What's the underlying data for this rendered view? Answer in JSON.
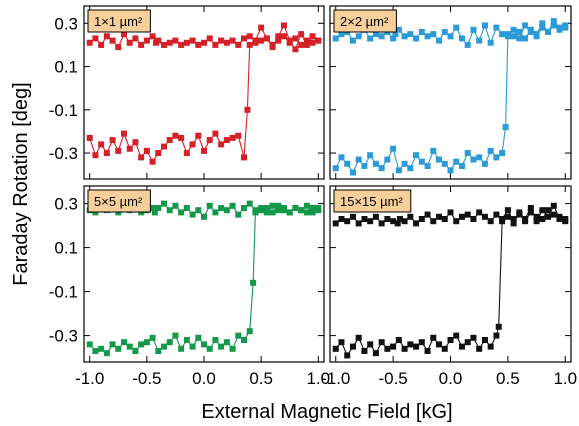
{
  "figure": {
    "xlabel": "External Magnetic Field [kG]",
    "ylabel": "Faraday Rotation [deg]",
    "y_tick_labels": [
      "0.3",
      "0.1",
      "-0.1",
      "-0.3"
    ],
    "x_tick_labels": [
      "-1.0",
      "-0.5",
      "0.0",
      "0.5",
      "1.0"
    ],
    "inset_background": "#f6cf9b"
  },
  "chart_data": [
    {
      "type": "line",
      "panel": "top-left",
      "annotation": "1×1 µm²",
      "color": "#d42027",
      "xlabel": "External Magnetic Field [kG]",
      "ylabel": "Faraday Rotation [deg]",
      "xlim": [
        -1.05,
        1.05
      ],
      "ylim": [
        -0.42,
        0.38
      ],
      "coercive_field": [
        -0.42,
        0.38
      ],
      "series": [
        {
          "x": [
            -1.0,
            -0.95,
            -0.9,
            -0.85,
            -0.8,
            -0.75,
            -0.7,
            -0.65,
            -0.6,
            -0.55,
            -0.5,
            -0.45,
            -0.42,
            -0.4,
            -0.35,
            -0.3,
            -0.25,
            -0.2,
            -0.15,
            -0.1,
            -0.05,
            0.0,
            0.05,
            0.1,
            0.15,
            0.2,
            0.25,
            0.3,
            0.35,
            0.4,
            0.45,
            0.5,
            0.55,
            0.6,
            0.65,
            0.7,
            0.75,
            0.8,
            0.85,
            0.9,
            0.95,
            1.0
          ],
          "y": [
            0.21,
            0.23,
            0.2,
            0.24,
            0.22,
            0.19,
            0.25,
            0.21,
            0.23,
            0.2,
            0.22,
            0.24,
            0.21,
            0.22,
            0.2,
            0.21,
            0.22,
            0.2,
            0.21,
            0.22,
            0.2,
            0.21,
            0.23,
            0.2,
            0.22,
            0.21,
            0.22,
            0.2,
            0.23,
            0.24,
            0.22,
            0.28,
            0.23,
            0.19,
            0.24,
            0.29,
            0.22,
            0.18,
            0.25,
            0.2,
            0.24,
            0.22
          ]
        },
        {
          "x": [
            -1.0,
            -0.95,
            -0.9,
            -0.85,
            -0.8,
            -0.75,
            -0.7,
            -0.65,
            -0.6,
            -0.55,
            -0.5,
            -0.45,
            -0.4,
            -0.35,
            -0.3,
            -0.25,
            -0.2,
            -0.15,
            -0.1,
            -0.05,
            0.0,
            0.05,
            0.1,
            0.15,
            0.2,
            0.25,
            0.3,
            0.35,
            0.38,
            0.4,
            0.45,
            0.5,
            0.55,
            0.6,
            0.65,
            0.7,
            0.75,
            0.8,
            0.85,
            0.9,
            0.95,
            1.0
          ],
          "y": [
            -0.23,
            -0.31,
            -0.26,
            -0.3,
            -0.24,
            -0.29,
            -0.21,
            -0.28,
            -0.25,
            -0.32,
            -0.29,
            -0.34,
            -0.3,
            -0.27,
            -0.24,
            -0.22,
            -0.23,
            -0.3,
            -0.26,
            -0.22,
            -0.29,
            -0.24,
            -0.21,
            -0.26,
            -0.24,
            -0.23,
            -0.22,
            -0.32,
            -0.1,
            0.2,
            0.21,
            0.22,
            0.23,
            0.2,
            0.22,
            0.24,
            0.21,
            0.23,
            0.2,
            0.22,
            0.21,
            0.22
          ]
        }
      ]
    },
    {
      "type": "line",
      "panel": "top-right",
      "annotation": "2×2 µm²",
      "color": "#2a9ad8",
      "xlabel": "External Magnetic Field [kG]",
      "ylabel": "Faraday Rotation [deg]",
      "xlim": [
        -1.05,
        1.05
      ],
      "ylim": [
        -0.42,
        0.38
      ],
      "coercive_field": [
        -0.48,
        0.48
      ],
      "series": [
        {
          "x": [
            -1.0,
            -0.95,
            -0.9,
            -0.85,
            -0.8,
            -0.75,
            -0.7,
            -0.65,
            -0.6,
            -0.55,
            -0.5,
            -0.48,
            -0.45,
            -0.4,
            -0.35,
            -0.3,
            -0.25,
            -0.2,
            -0.15,
            -0.1,
            -0.05,
            0.0,
            0.05,
            0.1,
            0.15,
            0.2,
            0.25,
            0.3,
            0.35,
            0.4,
            0.45,
            0.5,
            0.55,
            0.6,
            0.65,
            0.7,
            0.75,
            0.8,
            0.85,
            0.9,
            0.95,
            1.0
          ],
          "y": [
            0.23,
            0.25,
            0.26,
            0.22,
            0.24,
            0.27,
            0.23,
            0.25,
            0.24,
            0.26,
            0.23,
            0.25,
            0.27,
            0.24,
            0.25,
            0.23,
            0.26,
            0.24,
            0.25,
            0.22,
            0.26,
            0.24,
            0.28,
            0.23,
            0.2,
            0.27,
            0.22,
            0.29,
            0.21,
            0.28,
            0.25,
            0.24,
            0.27,
            0.23,
            0.29,
            0.26,
            0.25,
            0.3,
            0.26,
            0.31,
            0.28,
            0.29
          ]
        },
        {
          "x": [
            -1.0,
            -0.95,
            -0.9,
            -0.85,
            -0.8,
            -0.75,
            -0.7,
            -0.65,
            -0.6,
            -0.55,
            -0.5,
            -0.45,
            -0.4,
            -0.35,
            -0.3,
            -0.25,
            -0.2,
            -0.15,
            -0.1,
            -0.05,
            0.0,
            0.05,
            0.1,
            0.15,
            0.2,
            0.25,
            0.3,
            0.35,
            0.4,
            0.45,
            0.48,
            0.5,
            0.55,
            0.6,
            0.65,
            0.7,
            0.75,
            0.8,
            0.85,
            0.9,
            0.95,
            1.0
          ],
          "y": [
            -0.37,
            -0.32,
            -0.35,
            -0.39,
            -0.33,
            -0.36,
            -0.31,
            -0.35,
            -0.37,
            -0.33,
            -0.28,
            -0.38,
            -0.35,
            -0.37,
            -0.31,
            -0.34,
            -0.36,
            -0.29,
            -0.33,
            -0.35,
            -0.38,
            -0.34,
            -0.36,
            -0.3,
            -0.33,
            -0.32,
            -0.35,
            -0.29,
            -0.32,
            -0.3,
            -0.18,
            0.25,
            0.24,
            0.26,
            0.23,
            0.27,
            0.24,
            0.28,
            0.26,
            0.29,
            0.27,
            0.28
          ]
        }
      ]
    },
    {
      "type": "line",
      "panel": "bottom-left",
      "annotation": "5×5 µm²",
      "color": "#14984a",
      "xlabel": "External Magnetic Field [kG]",
      "ylabel": "Faraday Rotation [deg]",
      "xlim": [
        -1.05,
        1.05
      ],
      "ylim": [
        -0.42,
        0.38
      ],
      "coercive_field": [
        -0.43,
        0.43
      ],
      "series": [
        {
          "x": [
            -1.0,
            -0.95,
            -0.9,
            -0.85,
            -0.8,
            -0.75,
            -0.7,
            -0.65,
            -0.6,
            -0.55,
            -0.5,
            -0.45,
            -0.43,
            -0.4,
            -0.35,
            -0.3,
            -0.25,
            -0.2,
            -0.15,
            -0.1,
            -0.05,
            0.0,
            0.05,
            0.1,
            0.15,
            0.2,
            0.25,
            0.3,
            0.35,
            0.4,
            0.45,
            0.5,
            0.55,
            0.6,
            0.65,
            0.7,
            0.75,
            0.8,
            0.85,
            0.9,
            0.95,
            1.0
          ],
          "y": [
            0.27,
            0.26,
            0.28,
            0.27,
            0.29,
            0.26,
            0.28,
            0.27,
            0.29,
            0.26,
            0.27,
            0.28,
            0.26,
            0.28,
            0.3,
            0.27,
            0.29,
            0.26,
            0.28,
            0.25,
            0.27,
            0.24,
            0.29,
            0.26,
            0.28,
            0.27,
            0.29,
            0.25,
            0.28,
            0.3,
            0.27,
            0.28,
            0.26,
            0.29,
            0.27,
            0.28,
            0.26,
            0.28,
            0.27,
            0.26,
            0.28,
            0.27
          ]
        },
        {
          "x": [
            -1.0,
            -0.95,
            -0.9,
            -0.85,
            -0.8,
            -0.75,
            -0.7,
            -0.65,
            -0.6,
            -0.55,
            -0.5,
            -0.45,
            -0.4,
            -0.35,
            -0.3,
            -0.25,
            -0.2,
            -0.15,
            -0.1,
            -0.05,
            0.0,
            0.05,
            0.1,
            0.15,
            0.2,
            0.25,
            0.3,
            0.35,
            0.4,
            0.43,
            0.45,
            0.5,
            0.55,
            0.6,
            0.65,
            0.7,
            0.75,
            0.8,
            0.85,
            0.9,
            0.95,
            1.0
          ],
          "y": [
            -0.34,
            -0.37,
            -0.36,
            -0.38,
            -0.34,
            -0.36,
            -0.33,
            -0.35,
            -0.37,
            -0.34,
            -0.33,
            -0.31,
            -0.37,
            -0.35,
            -0.33,
            -0.3,
            -0.36,
            -0.32,
            -0.35,
            -0.31,
            -0.34,
            -0.36,
            -0.32,
            -0.35,
            -0.33,
            -0.36,
            -0.3,
            -0.32,
            -0.28,
            -0.06,
            0.26,
            0.27,
            0.28,
            0.26,
            0.29,
            0.27,
            0.26,
            0.28,
            0.27,
            0.29,
            0.26,
            0.28
          ]
        }
      ]
    },
    {
      "type": "line",
      "panel": "bottom-right",
      "annotation": "15×15 µm²",
      "color": "#111111",
      "xlabel": "External Magnetic Field [kG]",
      "ylabel": "Faraday Rotation [deg]",
      "xlim": [
        -1.05,
        1.05
      ],
      "ylim": [
        -0.42,
        0.38
      ],
      "coercive_field": [
        -0.46,
        0.42
      ],
      "series": [
        {
          "x": [
            -1.0,
            -0.95,
            -0.9,
            -0.85,
            -0.8,
            -0.75,
            -0.7,
            -0.65,
            -0.6,
            -0.55,
            -0.5,
            -0.46,
            -0.44,
            -0.4,
            -0.35,
            -0.3,
            -0.25,
            -0.2,
            -0.15,
            -0.1,
            -0.05,
            0.0,
            0.05,
            0.1,
            0.15,
            0.2,
            0.25,
            0.3,
            0.35,
            0.4,
            0.45,
            0.5,
            0.55,
            0.6,
            0.65,
            0.7,
            0.75,
            0.8,
            0.85,
            0.9,
            0.95,
            1.0
          ],
          "y": [
            0.21,
            0.23,
            0.22,
            0.24,
            0.21,
            0.23,
            0.22,
            0.24,
            0.21,
            0.23,
            0.22,
            0.21,
            0.23,
            0.22,
            0.24,
            0.21,
            0.23,
            0.25,
            0.22,
            0.24,
            0.23,
            0.26,
            0.22,
            0.24,
            0.25,
            0.23,
            0.26,
            0.24,
            0.22,
            0.25,
            0.23,
            0.27,
            0.21,
            0.26,
            0.23,
            0.28,
            0.22,
            0.27,
            0.24,
            0.29,
            0.23,
            0.22
          ]
        },
        {
          "x": [
            -1.0,
            -0.95,
            -0.9,
            -0.85,
            -0.8,
            -0.75,
            -0.7,
            -0.65,
            -0.6,
            -0.55,
            -0.5,
            -0.45,
            -0.4,
            -0.35,
            -0.3,
            -0.25,
            -0.2,
            -0.15,
            -0.1,
            -0.05,
            0.0,
            0.05,
            0.1,
            0.15,
            0.2,
            0.25,
            0.3,
            0.35,
            0.4,
            0.42,
            0.45,
            0.5,
            0.55,
            0.6,
            0.65,
            0.7,
            0.75,
            0.8,
            0.85,
            0.9,
            0.95,
            1.0
          ],
          "y": [
            -0.36,
            -0.33,
            -0.39,
            -0.35,
            -0.31,
            -0.37,
            -0.34,
            -0.38,
            -0.33,
            -0.36,
            -0.35,
            -0.32,
            -0.36,
            -0.34,
            -0.35,
            -0.33,
            -0.37,
            -0.31,
            -0.34,
            -0.36,
            -0.32,
            -0.3,
            -0.35,
            -0.33,
            -0.31,
            -0.36,
            -0.32,
            -0.35,
            -0.3,
            -0.26,
            0.22,
            0.24,
            0.23,
            0.25,
            0.22,
            0.26,
            0.24,
            0.23,
            0.27,
            0.25,
            0.24,
            0.23
          ]
        }
      ]
    }
  ]
}
